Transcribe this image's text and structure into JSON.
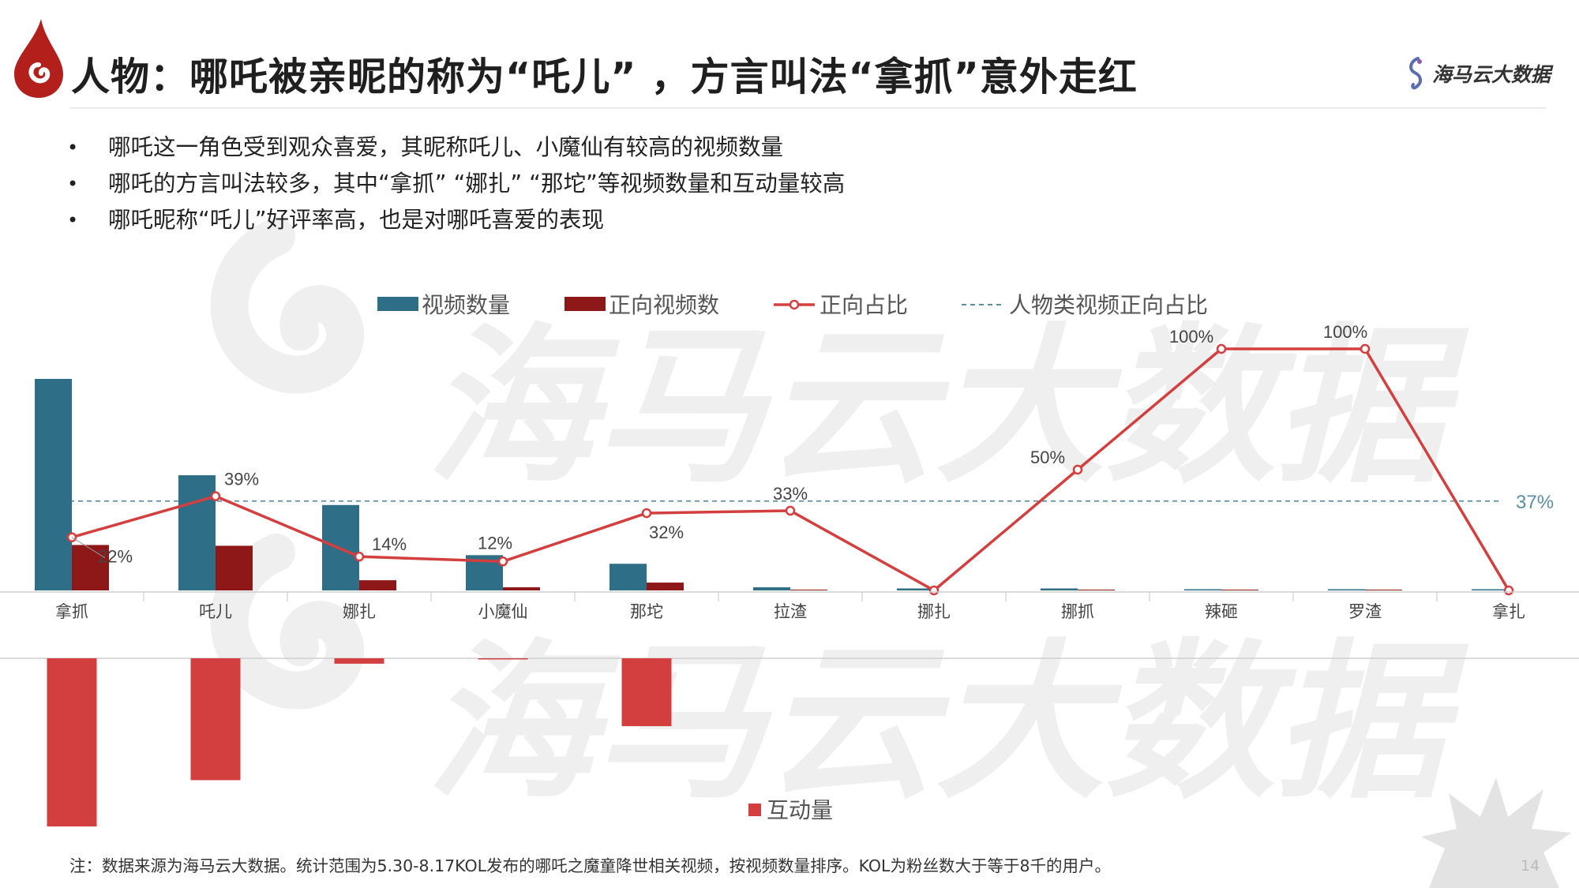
{
  "header": {
    "title": "人物：哪吒被亲昵的称为“吒儿” ，方言叫法“拿抓”意外走红",
    "brand": "海马云大数据"
  },
  "bullets": [
    "哪吒这一角色受到观众喜爱，其昵称吒儿、小魔仙有较高的视频数量",
    "哪吒的方言叫法较多，其中“拿抓”  “娜扎”  “那坨”等视频数量和互动量较高",
    "哪吒昵称“吒儿”好评率高，也是对哪吒喜爱的表现"
  ],
  "watermark_text": "海马云大数据",
  "chart_data": {
    "type": "bar",
    "categories": [
      "拿抓",
      "吒儿",
      "娜扎",
      "小魔仙",
      "那坨",
      "拉渣",
      "挪扎",
      "挪抓",
      "辣砸",
      "罗渣",
      "拿扎"
    ],
    "series": [
      {
        "name": "视频数量",
        "kind": "bar",
        "color": "#2e6e86",
        "values": [
          270,
          147,
          109,
          45,
          34,
          4,
          2.5,
          2.5,
          1.5,
          1.5,
          1.5
        ]
      },
      {
        "name": "正向视频数",
        "kind": "bar",
        "color": "#8e1818",
        "values": [
          58,
          57,
          13,
          4,
          10,
          1,
          0,
          1,
          1,
          1,
          0
        ]
      },
      {
        "name": "正向占比",
        "kind": "line",
        "color": "#d33f3f",
        "values": [
          22,
          39,
          14,
          12,
          32,
          33,
          0,
          50,
          100,
          100,
          0
        ],
        "labels": [
          "22%",
          "39%",
          "14%",
          "12%",
          "32%",
          "33%",
          "",
          "50%",
          "100%",
          "100%",
          ""
        ]
      },
      {
        "name": "人物类视频正向占比",
        "kind": "reference",
        "color": "#5a8ea3",
        "value": 37,
        "label": "37%"
      },
      {
        "name": "互动量",
        "kind": "bar-negative",
        "color": "#d33f3f",
        "values": [
          218,
          158,
          7,
          1.5,
          88,
          0,
          0,
          0,
          0,
          0,
          0
        ]
      }
    ],
    "legend_top": [
      "视频数量",
      "正向视频数",
      "正向占比",
      "人物类视频正向占比"
    ],
    "legend_bottom": "互动量",
    "percent_range": [
      0,
      100
    ],
    "legend_position": "top"
  },
  "footnote": "注：数据来源为海马云大数据。统计范围为5.30-8.17KOL发布的哪吒之魔童降世相关视频，按视频数量排序。KOL为粉丝数大于等于8千的用户。",
  "page_number": "14"
}
